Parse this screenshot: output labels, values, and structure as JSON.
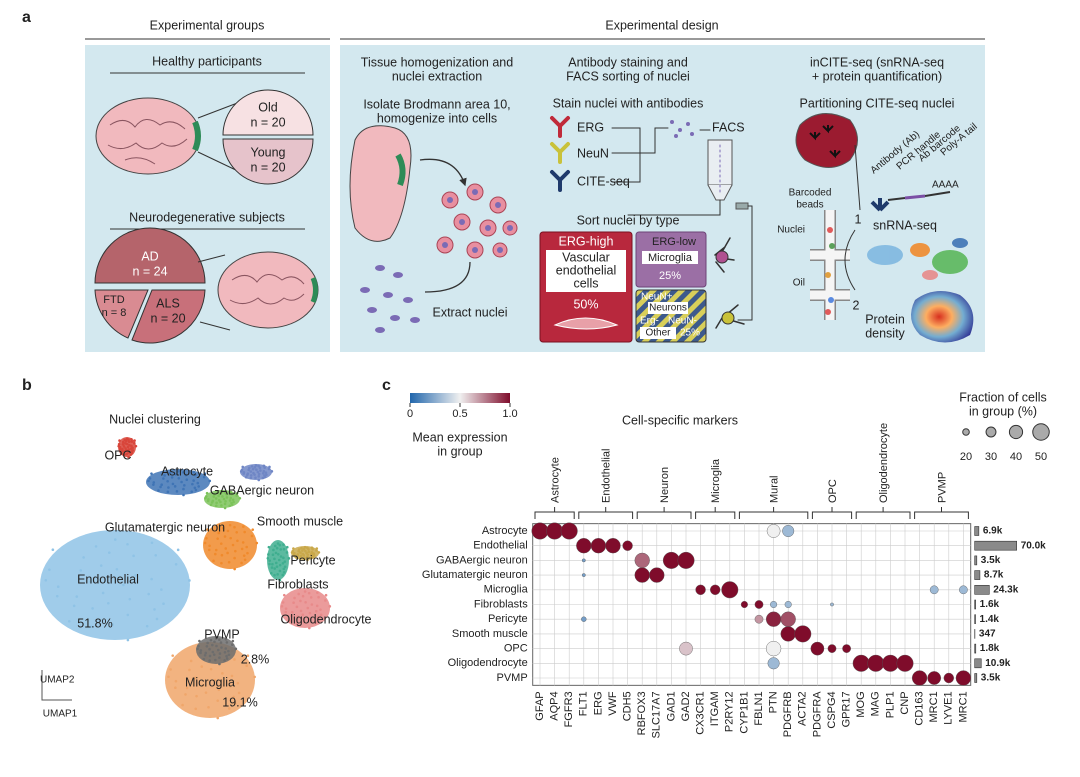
{
  "panel_a": {
    "label": "a",
    "groups_header": "Experimental groups",
    "design_header": "Experimental design",
    "healthy_title": "Healthy participants",
    "old": "Old",
    "old_n": "n = 20",
    "young": "Young",
    "young_n": "n = 20",
    "neuro_title": "Neurodegenerative subjects",
    "ad": "AD",
    "ad_n": "n = 24",
    "ftd": "FTD",
    "ftd_n": "n = 8",
    "als": "ALS",
    "als_n": "n = 20",
    "step1": {
      "title": [
        "Tissue homogenization and",
        "nuclei extraction"
      ],
      "text": [
        "Isolate Brodmann area 10,",
        "homogenize into cells"
      ],
      "extract": "Extract nuclei"
    },
    "step2": {
      "title": [
        "Antibody staining and",
        "FACS sorting of nuclei"
      ],
      "stain": "Stain nuclei with antibodies",
      "antibodies": [
        "ERG",
        "NeuN",
        "CITE-seq"
      ],
      "facs": "FACS",
      "sort": "Sort nuclei by type",
      "erg_high": "ERG-high",
      "endothelial": [
        "Vascular",
        "endothelial",
        "cells"
      ],
      "endo_pct": "50%",
      "erg_low": "ERG-low",
      "microglia": "Microglia",
      "micro_pct": "25%",
      "neun_pos": "NeuN+",
      "neurons": "Neurons",
      "erg_neg": "Erg-",
      "neun_neg": "NeuN-",
      "other": "Other",
      "other_pct": "25%"
    },
    "step3": {
      "title": [
        "inCITE-seq (snRNA-seq",
        "+ protein quantification)"
      ],
      "partition": "Partitioning CITE-seq nuclei",
      "construct": [
        "Antibody (Ab)",
        "PCR handle",
        "Ab barcode",
        "Poly-A tail"
      ],
      "polya": "AAAA",
      "beads": [
        "Barcoded",
        "beads"
      ],
      "nuclei": "Nuclei",
      "oil": "Oil",
      "n1": "1",
      "snrna": "snRNA-seq",
      "n2": "2",
      "protein": [
        "Protein",
        "density"
      ]
    }
  },
  "panel_b": {
    "label": "b",
    "title": "Nuclei clustering",
    "clusters": [
      {
        "name": "OPC",
        "color": "#d8453a"
      },
      {
        "name": "Astrocyte",
        "color": "#3f74b5"
      },
      {
        "name": "GABAergic neuron",
        "color": "#7cc35a"
      },
      {
        "name": "Glutamatergic neuron",
        "color": "#f08a2c"
      },
      {
        "name": "Smooth muscle",
        "color": "#6f86c5"
      },
      {
        "name": "Pericyte",
        "color": "#c9a84a"
      },
      {
        "name": "Fibroblasts",
        "color": "#3fae8f"
      },
      {
        "name": "Endothelial",
        "color": "#8fc3e6"
      },
      {
        "name": "Oligodendrocyte",
        "color": "#e88a8a"
      },
      {
        "name": "Microglia",
        "color": "#f0a66a"
      },
      {
        "name": "PVMP",
        "color": "#6d6d6d"
      }
    ],
    "percents": [
      "51.8%",
      "2.8%",
      "19.1%"
    ],
    "x_axis": "UMAP1",
    "y_axis": "UMAP2"
  },
  "panel_c": {
    "label": "c",
    "title": "Cell-specific markers",
    "colorbar": {
      "title": [
        "Mean expression",
        "in group"
      ],
      "ticks": [
        0,
        0.5,
        {
          "value": 1,
          "label": "1.0"
        }
      ],
      "colors": [
        "#2166ac",
        "#f0f0f0",
        "#7f0c2b"
      ]
    },
    "size_legend": {
      "title": [
        "Fraction of cells",
        "in group (%)"
      ],
      "values": [
        20,
        30,
        40,
        50
      ]
    },
    "gene_groups": [
      {
        "name": "Astrocyte",
        "genes": [
          "GFAP",
          "AQP4",
          "FGFR3"
        ]
      },
      {
        "name": "Endothelial",
        "genes": [
          "FLT1",
          "ERG",
          "VWF",
          "CDH5"
        ]
      },
      {
        "name": "Neuron",
        "genes": [
          "RBFOX3",
          "SLC17A7",
          "GAD1",
          "GAD2"
        ]
      },
      {
        "name": "Microglia",
        "genes": [
          "CX3CR1",
          "ITGAM",
          "P2RY12"
        ]
      },
      {
        "name": "Mural",
        "genes": [
          "CYP1B1",
          "FBLN1",
          "PTN",
          "PDGFRB",
          "ACTA2"
        ]
      },
      {
        "name": "OPC",
        "genes": [
          "PDGFRA",
          "CSPG4",
          "GPR17"
        ]
      },
      {
        "name": "Oligodendrocyte",
        "genes": [
          "MOG",
          "MAG",
          "PLP1",
          "CNP"
        ]
      },
      {
        "name": "PVMP",
        "genes": [
          "CD163",
          "MRC1",
          "LYVE1",
          "MRC1"
        ]
      }
    ],
    "cell_types": [
      "Astrocyte",
      "Endothelial",
      "GABAergic neuron",
      "Glutamatergic neuron",
      "Microglia",
      "Fibroblasts",
      "Pericyte",
      "Smooth muscle",
      "OPC",
      "Oligodendrocyte",
      "PVMP"
    ],
    "cell_counts": {
      "values": [
        6900,
        70000,
        3500,
        8700,
        24300,
        1600,
        1400,
        347,
        1800,
        10900,
        3500
      ],
      "value_labels": [
        "6.9k",
        "70.0k",
        "3.5k",
        "8.7k",
        "24.3k",
        "1.6k",
        "1.4k",
        "347",
        "1.8k",
        "10.9k",
        "3.5k"
      ]
    },
    "fraction": [
      [
        50,
        50,
        50,
        null,
        null,
        null,
        null,
        null,
        null,
        null,
        null,
        null,
        null,
        null,
        null,
        null,
        40,
        35,
        null,
        null,
        null,
        null,
        null,
        null,
        null,
        null,
        null,
        null,
        null,
        null
      ],
      [
        null,
        null,
        null,
        45,
        45,
        45,
        30,
        null,
        null,
        null,
        null,
        null,
        null,
        null,
        null,
        null,
        null,
        null,
        null,
        null,
        null,
        null,
        null,
        null,
        null,
        null,
        null,
        null,
        null,
        null
      ],
      [
        null,
        null,
        null,
        10,
        null,
        null,
        null,
        45,
        null,
        50,
        50,
        null,
        null,
        null,
        null,
        null,
        null,
        null,
        null,
        null,
        null,
        null,
        null,
        null,
        null,
        null,
        null,
        null,
        null,
        null
      ],
      [
        null,
        null,
        null,
        10,
        null,
        null,
        null,
        45,
        45,
        null,
        null,
        null,
        null,
        null,
        null,
        null,
        null,
        null,
        null,
        null,
        null,
        null,
        null,
        null,
        null,
        null,
        null,
        null,
        null,
        null
      ],
      [
        null,
        null,
        null,
        null,
        null,
        null,
        null,
        null,
        null,
        null,
        null,
        30,
        30,
        50,
        null,
        null,
        null,
        null,
        null,
        null,
        null,
        null,
        null,
        null,
        null,
        null,
        null,
        25,
        null,
        25
      ],
      [
        null,
        null,
        null,
        null,
        null,
        null,
        null,
        null,
        null,
        null,
        null,
        null,
        null,
        null,
        20,
        25,
        20,
        20,
        null,
        null,
        10,
        null,
        null,
        null,
        null,
        null,
        null,
        null,
        null,
        null
      ],
      [
        null,
        null,
        null,
        15,
        null,
        null,
        null,
        null,
        null,
        null,
        null,
        null,
        null,
        null,
        null,
        25,
        45,
        45,
        null,
        null,
        null,
        null,
        null,
        null,
        null,
        null,
        null,
        null,
        null,
        null
      ],
      [
        null,
        null,
        null,
        null,
        null,
        null,
        null,
        null,
        null,
        null,
        null,
        null,
        null,
        null,
        null,
        null,
        null,
        45,
        50,
        null,
        null,
        null,
        null,
        null,
        null,
        null,
        null,
        null,
        null,
        null
      ],
      [
        null,
        null,
        null,
        null,
        null,
        null,
        null,
        null,
        null,
        null,
        40,
        null,
        null,
        null,
        null,
        null,
        45,
        null,
        null,
        40,
        25,
        25,
        null,
        null,
        null,
        null,
        null,
        null,
        null,
        null
      ],
      [
        null,
        null,
        null,
        null,
        null,
        null,
        null,
        null,
        null,
        null,
        null,
        null,
        null,
        null,
        null,
        null,
        35,
        null,
        null,
        null,
        null,
        null,
        50,
        50,
        50,
        50,
        null,
        null,
        null,
        null
      ],
      [
        null,
        null,
        null,
        null,
        null,
        null,
        null,
        null,
        null,
        null,
        null,
        null,
        null,
        null,
        null,
        null,
        null,
        null,
        null,
        null,
        null,
        null,
        null,
        null,
        null,
        null,
        45,
        40,
        30,
        45
      ]
    ],
    "expression": [
      [
        1,
        1,
        1,
        null,
        null,
        null,
        null,
        null,
        null,
        null,
        null,
        null,
        null,
        null,
        null,
        null,
        0.5,
        0.3,
        null,
        null,
        null,
        null,
        null,
        null,
        null,
        null,
        null,
        null,
        null,
        null
      ],
      [
        null,
        null,
        null,
        1,
        1,
        1,
        1,
        null,
        null,
        null,
        null,
        null,
        null,
        null,
        null,
        null,
        null,
        null,
        null,
        null,
        null,
        null,
        null,
        null,
        null,
        null,
        null,
        null,
        null,
        null
      ],
      [
        null,
        null,
        null,
        0.2,
        null,
        null,
        null,
        0.8,
        null,
        1,
        1,
        null,
        null,
        null,
        null,
        null,
        null,
        null,
        null,
        null,
        null,
        null,
        null,
        null,
        null,
        null,
        null,
        null,
        null,
        null
      ],
      [
        null,
        null,
        null,
        0.2,
        null,
        null,
        null,
        1,
        1,
        null,
        null,
        null,
        null,
        null,
        null,
        null,
        null,
        null,
        null,
        null,
        null,
        null,
        null,
        null,
        null,
        null,
        null,
        null,
        null,
        null
      ],
      [
        null,
        null,
        null,
        null,
        null,
        null,
        null,
        null,
        null,
        null,
        null,
        1,
        1,
        1,
        null,
        null,
        null,
        null,
        null,
        null,
        null,
        null,
        null,
        null,
        null,
        null,
        null,
        0.3,
        null,
        0.3
      ],
      [
        null,
        null,
        null,
        null,
        null,
        null,
        null,
        null,
        null,
        null,
        null,
        null,
        null,
        null,
        1,
        1,
        0.3,
        0.3,
        null,
        null,
        0.3,
        null,
        null,
        null,
        null,
        null,
        null,
        null,
        null,
        null
      ],
      [
        null,
        null,
        null,
        0.2,
        null,
        null,
        null,
        null,
        null,
        null,
        null,
        null,
        null,
        null,
        null,
        0.7,
        0.95,
        0.85,
        null,
        null,
        null,
        null,
        null,
        null,
        null,
        null,
        null,
        null,
        null,
        null
      ],
      [
        null,
        null,
        null,
        null,
        null,
        null,
        null,
        null,
        null,
        null,
        null,
        null,
        null,
        null,
        null,
        null,
        null,
        1,
        1,
        null,
        null,
        null,
        null,
        null,
        null,
        null,
        null,
        null,
        null,
        null
      ],
      [
        null,
        null,
        null,
        null,
        null,
        null,
        null,
        null,
        null,
        null,
        0.6,
        null,
        null,
        null,
        null,
        null,
        0.5,
        null,
        null,
        1,
        1,
        1,
        null,
        null,
        null,
        null,
        null,
        null,
        null,
        null
      ],
      [
        null,
        null,
        null,
        null,
        null,
        null,
        null,
        null,
        null,
        null,
        null,
        null,
        null,
        null,
        null,
        null,
        0.3,
        null,
        null,
        null,
        null,
        null,
        1,
        1,
        1,
        1,
        null,
        null,
        null,
        null
      ],
      [
        null,
        null,
        null,
        null,
        null,
        null,
        null,
        null,
        null,
        null,
        null,
        null,
        null,
        null,
        null,
        null,
        null,
        null,
        null,
        null,
        null,
        null,
        null,
        null,
        null,
        null,
        1,
        1,
        1,
        1
      ]
    ]
  }
}
